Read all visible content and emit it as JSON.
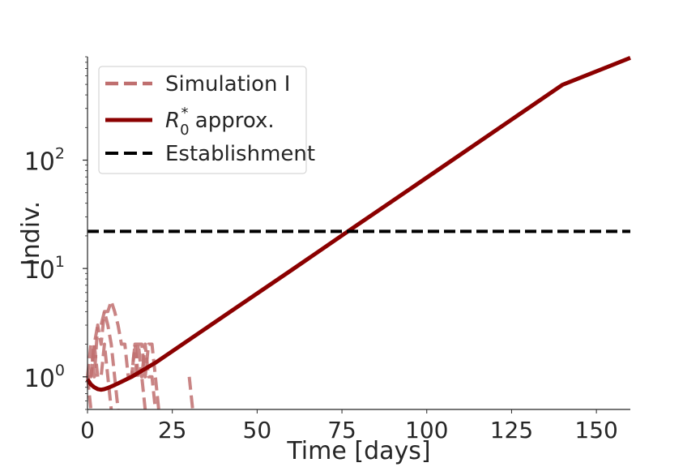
{
  "chart_data": {
    "type": "line",
    "title": "",
    "xlabel": "Time [days]",
    "ylabel": "Indiv.",
    "xlim": [
      0,
      160
    ],
    "ylim": [
      0.5,
      900
    ],
    "yscale": "log",
    "grid": false,
    "legend_position": "top-left",
    "x_ticks": [
      {
        "value": 0,
        "label": "0"
      },
      {
        "value": 25,
        "label": "25"
      },
      {
        "value": 50,
        "label": "50"
      },
      {
        "value": 75,
        "label": "75"
      },
      {
        "value": 100,
        "label": "100"
      },
      {
        "value": 125,
        "label": "125"
      },
      {
        "value": 150,
        "label": "150"
      }
    ],
    "y_ticks": [
      {
        "value": 1,
        "base": "10",
        "exp": "0"
      },
      {
        "value": 10,
        "base": "10",
        "exp": "1"
      },
      {
        "value": 100,
        "base": "10",
        "exp": "2"
      }
    ],
    "legend": [
      {
        "key": "simulation",
        "label": "Simulation I",
        "color": "#bf6f6f",
        "dash": "dashed"
      },
      {
        "key": "approx",
        "label_main": "R",
        "label_sub": "0",
        "label_sup": "*",
        "label_rest": " approx.",
        "color": "#8b0000",
        "dash": "solid"
      },
      {
        "key": "establishment",
        "label": "Establishment",
        "color": "#000000",
        "dash": "dashed"
      }
    ],
    "series": [
      {
        "key": "simulation_traces",
        "color": "#bf6f6f",
        "dash": "dashed",
        "traces": [
          {
            "x": [
              0,
              1,
              2,
              3,
              4,
              5,
              6,
              7,
              8,
              9,
              10,
              11,
              12,
              13,
              14,
              15,
              16,
              17,
              18,
              19,
              20,
              21
            ],
            "y": [
              1,
              2,
              1,
              3,
              2,
              4,
              4,
              5,
              4,
              3,
              2,
              2,
              1,
              1,
              2,
              2,
              2,
              1,
              2,
              2,
              1,
              0.5
            ]
          },
          {
            "x": [
              0,
              1,
              2,
              3,
              4,
              5,
              6,
              7
            ],
            "y": [
              1,
              1,
              2,
              1,
              1,
              2,
              1,
              0.5
            ]
          },
          {
            "x": [
              1,
              2,
              3,
              4,
              5,
              6,
              7,
              8,
              9
            ],
            "y": [
              1,
              2,
              3,
              3,
              4,
              3,
              2,
              1,
              0.5
            ]
          },
          {
            "x": [
              0,
              1,
              2
            ],
            "y": [
              1,
              0.5,
              0.5
            ]
          },
          {
            "x": [
              12,
              13,
              14,
              15,
              16,
              17
            ],
            "y": [
              1,
              1,
              2,
              1,
              1,
              0.5
            ]
          },
          {
            "x": [
              14,
              15,
              16,
              17,
              18,
              19,
              20
            ],
            "y": [
              1,
              2,
              1,
              2,
              1,
              1,
              0.5
            ]
          },
          {
            "x": [
              30,
              31
            ],
            "y": [
              1,
              0.5
            ]
          }
        ]
      },
      {
        "key": "approx_curve",
        "color": "#8b0000",
        "dash": "solid",
        "x": [
          0,
          1,
          2,
          3,
          4,
          5,
          6,
          8,
          10,
          13,
          20,
          40,
          60,
          80,
          100,
          120,
          140,
          160
        ],
        "y": [
          0.95,
          0.85,
          0.8,
          0.77,
          0.76,
          0.77,
          0.79,
          0.84,
          0.9,
          1.0,
          1.35,
          3.6,
          9.6,
          25.8,
          69,
          185,
          496,
          880
        ]
      },
      {
        "key": "establishment_line",
        "color": "#000000",
        "dash": "dashed",
        "x": [
          0,
          160
        ],
        "y": [
          22,
          22
        ]
      }
    ]
  }
}
